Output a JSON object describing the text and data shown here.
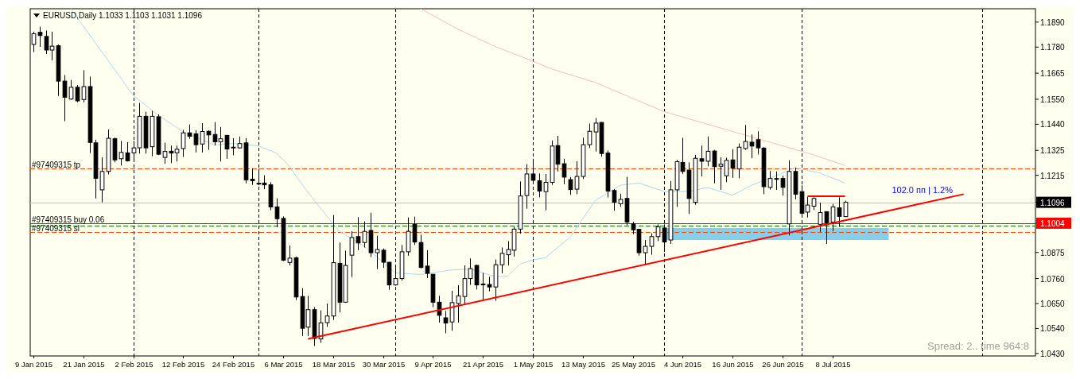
{
  "chart_data": {
    "type": "candlestick",
    "title": "EURUSD,Daily  1.1033 1.1103 1.1031 1.1096",
    "categories": [
      "9 Jan 2015",
      null,
      null,
      null,
      null,
      null,
      null,
      null,
      "21 Jan 2015",
      null,
      null,
      null,
      null,
      null,
      null,
      null,
      "2 Feb 2015",
      null,
      null,
      null,
      null,
      null,
      null,
      null,
      "12 Feb 2015",
      null,
      null,
      null,
      null,
      null,
      null,
      null,
      "24 Feb 2015",
      null,
      null,
      null,
      null,
      null,
      null,
      null,
      "6 Mar 2015",
      null,
      null,
      null,
      null,
      null,
      null,
      null,
      "18 Mar 2015",
      null,
      null,
      null,
      null,
      null,
      null,
      null,
      "30 Mar 2015",
      null,
      null,
      null,
      null,
      null,
      null,
      null,
      "9 Apr 2015",
      null,
      null,
      null,
      null,
      null,
      null,
      null,
      "21 Apr 2015",
      null,
      null,
      null,
      null,
      null,
      null,
      null,
      "1 May 2015",
      null,
      null,
      null,
      null,
      null,
      null,
      null,
      "13 May 2015",
      null,
      null,
      null,
      null,
      null,
      null,
      null,
      "25 May 2015",
      null,
      null,
      null,
      null,
      null,
      null,
      null,
      "4 Jun 2015",
      null,
      null,
      null,
      null,
      null,
      null,
      null,
      "16 Jun 2015",
      null,
      null,
      null,
      null,
      null,
      null,
      null,
      "26 Jun 2015",
      null,
      null,
      null,
      null,
      null,
      null,
      null,
      "8 Jul 2015",
      null,
      null,
      null,
      null,
      null,
      null,
      null,
      null,
      null,
      null,
      null,
      null,
      null,
      null,
      null,
      null,
      null,
      null,
      null,
      null,
      null,
      null,
      null,
      null,
      null,
      null,
      null,
      null,
      null,
      null,
      null,
      null
    ],
    "ohlc": [
      [
        1.1792,
        1.1848,
        1.1758,
        1.1839
      ],
      [
        1.1845,
        1.187,
        1.1781,
        1.1831
      ],
      [
        1.1827,
        1.1853,
        1.1749,
        1.1767
      ],
      [
        1.1767,
        1.1848,
        1.1722,
        1.1784
      ],
      [
        1.1786,
        1.1792,
        1.1565,
        1.163
      ],
      [
        1.163,
        1.1657,
        1.1454,
        1.1559
      ],
      [
        1.1551,
        1.1635,
        1.1548,
        1.1603
      ],
      [
        1.1603,
        1.1613,
        1.1537,
        1.1543
      ],
      [
        1.1549,
        1.1678,
        1.1537,
        1.1606
      ],
      [
        1.1606,
        1.165,
        1.1313,
        1.136
      ],
      [
        1.1358,
        1.1372,
        1.1113,
        1.1202
      ],
      [
        1.1151,
        1.1294,
        1.1096,
        1.1232
      ],
      [
        1.1232,
        1.1417,
        1.1219,
        1.1378
      ],
      [
        1.1376,
        1.1381,
        1.1272,
        1.1283
      ],
      [
        1.1288,
        1.1367,
        1.1258,
        1.1316
      ],
      [
        1.1314,
        1.1361,
        1.1276,
        1.1279
      ],
      [
        1.1314,
        1.1367,
        1.1281,
        1.1336
      ],
      [
        1.1336,
        1.1534,
        1.1311,
        1.1475
      ],
      [
        1.1475,
        1.1495,
        1.1311,
        1.1336
      ],
      [
        1.1341,
        1.1499,
        1.1299,
        1.1475
      ],
      [
        1.1473,
        1.1484,
        1.1304,
        1.1308
      ],
      [
        1.1294,
        1.1359,
        1.1266,
        1.132
      ],
      [
        1.1321,
        1.1346,
        1.1269,
        1.1313
      ],
      [
        1.1314,
        1.1346,
        1.1276,
        1.133
      ],
      [
        1.1333,
        1.1415,
        1.1296,
        1.1402
      ],
      [
        1.1402,
        1.1439,
        1.1376,
        1.1387
      ],
      [
        1.1398,
        1.1414,
        1.1316,
        1.135
      ],
      [
        1.1353,
        1.1445,
        1.1316,
        1.1408
      ],
      [
        1.1409,
        1.1414,
        1.1327,
        1.1393
      ],
      [
        1.1395,
        1.1449,
        1.1346,
        1.1363
      ],
      [
        1.1363,
        1.1428,
        1.1276,
        1.1376
      ],
      [
        1.1391,
        1.1393,
        1.1288,
        1.1331
      ],
      [
        1.1339,
        1.1378,
        1.1303,
        1.1339
      ],
      [
        1.1336,
        1.1386,
        1.1333,
        1.1355
      ],
      [
        1.1358,
        1.1379,
        1.118,
        1.1195
      ],
      [
        1.1198,
        1.1246,
        1.1173,
        1.1191
      ],
      [
        1.118,
        1.1243,
        1.1171,
        1.118
      ],
      [
        1.1181,
        1.1215,
        1.1154,
        1.1173
      ],
      [
        1.1173,
        1.1185,
        1.1061,
        1.1076
      ],
      [
        1.1076,
        1.1113,
        1.0986,
        1.1024
      ],
      [
        1.1025,
        1.1034,
        1.0837,
        1.0841
      ],
      [
        1.0831,
        1.0906,
        1.0818,
        1.085
      ],
      [
        1.0852,
        1.0857,
        1.0665,
        1.0679
      ],
      [
        1.0681,
        1.0718,
        1.0507,
        1.0541
      ],
      [
        1.0546,
        1.0684,
        1.0507,
        1.0623
      ],
      [
        1.0623,
        1.0634,
        1.0463,
        1.0496
      ],
      [
        1.0494,
        1.062,
        1.0477,
        1.0565
      ],
      [
        1.0566,
        1.065,
        1.0547,
        1.0595
      ],
      [
        1.0595,
        1.104,
        1.0578,
        1.083
      ],
      [
        1.0827,
        1.0919,
        1.0611,
        1.0656
      ],
      [
        1.0656,
        1.0883,
        1.0653,
        1.0818
      ],
      [
        1.0863,
        1.0969,
        1.0766,
        1.0941
      ],
      [
        1.0945,
        1.1031,
        1.0885,
        1.0917
      ],
      [
        1.0919,
        1.1012,
        1.0897,
        1.0968
      ],
      [
        1.0972,
        1.105,
        1.0855,
        1.0874
      ],
      [
        1.0874,
        1.0949,
        1.0802,
        1.0888
      ],
      [
        1.0885,
        1.0893,
        1.0807,
        1.0832
      ],
      [
        1.0832,
        1.0832,
        1.071,
        1.0732
      ],
      [
        1.0732,
        1.0807,
        1.0729,
        1.076
      ],
      [
        1.076,
        1.0908,
        1.0751,
        1.0878
      ],
      [
        1.0878,
        1.1029,
        1.0861,
        1.0968
      ],
      [
        1.0999,
        1.1033,
        1.0908,
        1.0921
      ],
      [
        1.0919,
        1.0953,
        1.0804,
        1.0809
      ],
      [
        1.0815,
        1.0885,
        1.0762,
        1.0783
      ],
      [
        1.0779,
        1.0779,
        1.0634,
        1.0656
      ],
      [
        1.0656,
        1.0684,
        1.0566,
        1.0598
      ],
      [
        1.0587,
        1.0617,
        1.0519,
        1.0564
      ],
      [
        1.0569,
        1.0706,
        1.053,
        1.0654
      ],
      [
        1.065,
        1.0731,
        1.0566,
        1.0684
      ],
      [
        1.0681,
        1.0818,
        1.0645,
        1.076
      ],
      [
        1.076,
        1.0849,
        1.0732,
        1.0804
      ],
      [
        1.0818,
        1.0821,
        1.0712,
        1.0732
      ],
      [
        1.0736,
        1.0785,
        1.0667,
        1.0736
      ],
      [
        1.0734,
        1.0768,
        1.0704,
        1.0723
      ],
      [
        1.0723,
        1.0844,
        1.0662,
        1.0821
      ],
      [
        1.0821,
        1.0897,
        1.0783,
        1.0871
      ],
      [
        1.0865,
        1.0925,
        1.0818,
        1.0888
      ],
      [
        1.0885,
        1.0988,
        1.0857,
        1.0978
      ],
      [
        1.0978,
        1.1188,
        1.0958,
        1.1124
      ],
      [
        1.1126,
        1.1264,
        1.1068,
        1.1221
      ],
      [
        1.1221,
        1.1288,
        1.1188,
        1.1193
      ],
      [
        1.1191,
        1.1223,
        1.1118,
        1.1146
      ],
      [
        1.1143,
        1.1221,
        1.1061,
        1.1184
      ],
      [
        1.1184,
        1.1369,
        1.1173,
        1.1344
      ],
      [
        1.1346,
        1.1389,
        1.1232,
        1.1264
      ],
      [
        1.1266,
        1.1288,
        1.1176,
        1.1207
      ],
      [
        1.1196,
        1.1207,
        1.1129,
        1.1152
      ],
      [
        1.1154,
        1.1277,
        1.1132,
        1.121
      ],
      [
        1.121,
        1.1381,
        1.1199,
        1.135
      ],
      [
        1.135,
        1.1443,
        1.1335,
        1.1409
      ],
      [
        1.1406,
        1.1467,
        1.132,
        1.1445
      ],
      [
        1.1448,
        1.145,
        1.1297,
        1.1311
      ],
      [
        1.1313,
        1.1324,
        1.1118,
        1.1146
      ],
      [
        1.1148,
        1.1154,
        1.1059,
        1.1096
      ],
      [
        1.109,
        1.1134,
        1.1076,
        1.1109
      ],
      [
        1.1113,
        1.1208,
        1.0995,
        1.1009
      ],
      [
        1.1001,
        1.1011,
        1.0955,
        1.0975
      ],
      [
        1.0977,
        1.0977,
        1.0861,
        1.0874
      ],
      [
        1.0874,
        1.093,
        1.0818,
        1.0902
      ],
      [
        1.0902,
        1.096,
        1.0865,
        1.0945
      ],
      [
        1.0945,
        1.0999,
        1.0925,
        1.0988
      ],
      [
        1.0983,
        1.0999,
        1.0877,
        1.0921
      ],
      [
        1.093,
        1.119,
        1.0913,
        1.1151
      ],
      [
        1.1151,
        1.1283,
        1.1076,
        1.1275
      ],
      [
        1.1272,
        1.138,
        1.1221,
        1.1232
      ],
      [
        1.1238,
        1.1272,
        1.1045,
        1.1113
      ],
      [
        1.1096,
        1.1305,
        1.1085,
        1.129
      ],
      [
        1.1288,
        1.1346,
        1.121,
        1.1277
      ],
      [
        1.1277,
        1.1386,
        1.1255,
        1.1321
      ],
      [
        1.1322,
        1.1327,
        1.118,
        1.1253
      ],
      [
        1.1255,
        1.1294,
        1.1151,
        1.1264
      ],
      [
        1.1213,
        1.1293,
        1.1185,
        1.1281
      ],
      [
        1.1283,
        1.133,
        1.1204,
        1.1247
      ],
      [
        1.1243,
        1.1355,
        1.1202,
        1.1339
      ],
      [
        1.1333,
        1.1437,
        1.1327,
        1.1364
      ],
      [
        1.1361,
        1.1395,
        1.129,
        1.1344
      ],
      [
        1.1372,
        1.1409,
        1.1307,
        1.1336
      ],
      [
        1.1335,
        1.1339,
        1.1132,
        1.1165
      ],
      [
        1.1162,
        1.1234,
        1.1152,
        1.1201
      ],
      [
        1.1201,
        1.1232,
        1.1151,
        1.1201
      ],
      [
        1.1201,
        1.1213,
        1.1126,
        1.1162
      ],
      [
        1.1001,
        1.1281,
        1.095,
        1.1232
      ],
      [
        1.1232,
        1.1249,
        1.1109,
        1.1132
      ],
      [
        1.1143,
        1.1171,
        1.1037,
        1.1048
      ],
      [
        1.1053,
        1.112,
        1.1029,
        1.1084
      ],
      [
        1.1079,
        1.1118,
        1.1062,
        1.1113
      ],
      [
        1.0999,
        1.1095,
        1.0966,
        1.1051
      ],
      [
        1.1055,
        1.1055,
        1.0913,
        1.1006
      ],
      [
        1.1009,
        1.1089,
        1.0969,
        1.1076
      ],
      [
        1.1072,
        1.1118,
        1.0988,
        1.1034
      ],
      [
        1.1033,
        1.1103,
        1.1031,
        1.1096
      ],
      null,
      null,
      null,
      null,
      null,
      null,
      null,
      null,
      null,
      null,
      null,
      null,
      null,
      null,
      null,
      null,
      null,
      null,
      null,
      null,
      null,
      null,
      null,
      null,
      null,
      null,
      null,
      null,
      null,
      null
    ],
    "series": [
      {
        "type": "line",
        "color": "#add8e6",
        "values": [
          null,
          null,
          null,
          null,
          null,
          null,
          1.1949,
          null,
          null,
          null,
          null,
          null,
          null,
          null,
          null,
          null,
          1.1567,
          null,
          null,
          null,
          1.148,
          null,
          null,
          null,
          1.1406,
          null,
          null,
          null,
          null,
          1.1349,
          null,
          null,
          1.1355,
          null,
          null,
          null,
          1.1345,
          null,
          null,
          1.1312,
          null,
          1.1255,
          1.1214,
          null,
          null,
          1.1104,
          null,
          null,
          null,
          1.0969,
          null,
          null,
          null,
          1.0902,
          null,
          null,
          null,
          null,
          1.0785,
          null,
          null,
          null,
          1.0778,
          null,
          null,
          null,
          null,
          1.0798,
          null,
          null,
          1.0802,
          null,
          null,
          null,
          1.0768,
          null,
          1.0771,
          null,
          1.0825,
          null,
          1.0842,
          null,
          1.0852,
          null,
          null,
          null,
          1.0943,
          null,
          null,
          null,
          1.1104,
          null,
          null,
          null,
          1.1171,
          null,
          null,
          1.1181,
          null,
          null,
          null,
          1.1144,
          null,
          null,
          null,
          1.1144,
          null,
          null,
          1.1161,
          null,
          null,
          null,
          1.1127,
          null,
          null,
          1.1171,
          null,
          null,
          null,
          1.1214,
          null,
          null,
          1.1248,
          null,
          null,
          null,
          1.1225,
          null,
          null,
          null,
          1.1181,
          null,
          null,
          null,
          null,
          null,
          null,
          null,
          null,
          null,
          null,
          null,
          null,
          null,
          null,
          null,
          null,
          null,
          null,
          null,
          null,
          null,
          null,
          null,
          null,
          null,
          null,
          null,
          null,
          null,
          null
        ]
      },
      {
        "type": "line",
        "color": "#ffb6c1",
        "values": [
          null,
          null,
          null,
          null,
          null,
          null,
          null,
          null,
          null,
          null,
          null,
          null,
          null,
          null,
          null,
          null,
          null,
          null,
          null,
          null,
          null,
          null,
          null,
          null,
          null,
          null,
          null,
          null,
          null,
          null,
          null,
          null,
          null,
          null,
          null,
          null,
          null,
          null,
          null,
          null,
          null,
          null,
          null,
          null,
          null,
          null,
          null,
          null,
          null,
          null,
          null,
          null,
          null,
          null,
          null,
          null,
          null,
          null,
          null,
          null,
          null,
          null,
          1.1949,
          null,
          null,
          null,
          null,
          null,
          1.1859,
          null,
          null,
          null,
          null,
          null,
          1.1782,
          null,
          null,
          null,
          null,
          null,
          1.1718,
          null,
          null,
          1.1684,
          null,
          null,
          null,
          null,
          null,
          null,
          1.1624,
          null,
          null,
          null,
          null,
          null,
          null,
          null,
          null,
          null,
          null,
          1.1496,
          null,
          null,
          null,
          null,
          null,
          null,
          null,
          null,
          null,
          1.1416,
          null,
          null,
          null,
          null,
          null,
          null,
          null,
          null,
          null,
          null,
          null,
          null,
          null,
          1.1305,
          null,
          null,
          null,
          null,
          1.1258,
          null,
          null,
          null,
          null,
          null,
          null,
          null,
          null,
          null,
          null,
          null,
          null,
          null,
          null,
          null,
          null,
          null,
          null,
          null,
          null,
          null,
          null,
          null,
          null,
          null,
          null,
          null,
          null,
          null,
          null
        ]
      },
      {
        "type": "line",
        "color": "#ff0000",
        "values": [
          null,
          null,
          null,
          null,
          null,
          null,
          null,
          null,
          null,
          null,
          null,
          null,
          null,
          null,
          null,
          null,
          null,
          null,
          null,
          null,
          null,
          null,
          null,
          null,
          null,
          null,
          null,
          null,
          null,
          null,
          null,
          null,
          null,
          null,
          null,
          null,
          null,
          null,
          null,
          null,
          null,
          null,
          null,
          null,
          1.0494,
          null,
          null,
          null,
          null,
          null,
          null,
          null,
          null,
          null,
          null,
          null,
          null,
          null,
          null,
          null,
          null,
          null,
          null,
          null,
          null,
          null,
          null,
          null,
          null,
          null,
          null,
          null,
          null,
          null,
          null,
          null,
          null,
          null,
          null,
          null,
          null,
          null,
          null,
          null,
          null,
          null,
          null,
          null,
          null,
          null,
          null,
          null,
          null,
          null,
          null,
          null,
          null,
          null,
          null,
          null,
          null,
          null,
          null,
          null,
          null,
          null,
          null,
          null,
          null,
          null,
          null,
          null,
          null,
          null,
          null,
          null,
          null,
          null,
          null,
          null,
          null,
          null,
          null,
          null,
          null,
          null,
          null,
          null,
          null,
          null,
          null,
          null,
          null,
          null,
          null,
          null,
          null,
          null,
          null,
          null,
          null,
          null,
          null,
          null,
          null,
          null,
          null,
          null,
          null,
          1.1132,
          null,
          null,
          null,
          null,
          null,
          null,
          null,
          null,
          null,
          null,
          null
        ]
      },
      {
        "type": "line",
        "color": "#ff0000",
        "values": [
          null,
          null,
          null,
          null,
          null,
          null,
          null,
          null,
          null,
          null,
          null,
          null,
          null,
          null,
          null,
          null,
          null,
          null,
          null,
          null,
          null,
          null,
          null,
          null,
          null,
          null,
          null,
          null,
          null,
          null,
          null,
          null,
          null,
          null,
          null,
          null,
          null,
          null,
          null,
          null,
          null,
          null,
          null,
          null,
          null,
          null,
          null,
          null,
          null,
          null,
          null,
          null,
          null,
          null,
          null,
          null,
          null,
          null,
          null,
          null,
          null,
          null,
          null,
          null,
          null,
          null,
          null,
          null,
          null,
          null,
          null,
          null,
          null,
          null,
          null,
          null,
          null,
          null,
          null,
          null,
          null,
          null,
          null,
          null,
          null,
          null,
          null,
          null,
          null,
          null,
          null,
          null,
          null,
          null,
          null,
          null,
          null,
          null,
          null,
          null,
          null,
          null,
          null,
          null,
          null,
          null,
          null,
          null,
          null,
          null,
          null,
          null,
          null,
          null,
          null,
          null,
          null,
          null,
          null,
          null,
          null,
          null,
          null,
          null,
          1.1123,
          null,
          null,
          null,
          null,
          null,
          1.1123,
          null,
          null,
          null,
          null,
          null,
          null,
          null,
          null,
          null,
          null,
          null,
          null,
          null,
          null,
          null,
          null,
          null,
          null,
          null,
          null,
          null,
          null,
          null,
          null,
          null,
          null,
          null,
          null,
          null,
          null
        ]
      }
    ],
    "ylim": [
      1.0419,
      1.1949
    ],
    "yticks": [
      {
        "value": 1.189,
        "label": "1.1890"
      },
      {
        "value": 1.178,
        "label": "1.1780"
      },
      1.1665,
      {
        "value": 1.155,
        "label": "1.1550"
      },
      {
        "value": 1.144,
        "label": "1.1440"
      },
      1.1325,
      1.1215,
      {
        "value": 1.1096,
        "label": "1.1096"
      },
      {
        "value": 1.1004,
        "label": "1.1004"
      },
      1.0875,
      {
        "value": 1.076,
        "label": "1.0760"
      },
      {
        "value": 1.065,
        "label": "1.0650"
      },
      {
        "value": 1.054,
        "label": "1.0540"
      },
      {
        "value": 1.043,
        "label": "1.0430"
      }
    ],
    "ref_lines": [
      {
        "axis": "y",
        "value": 1.1245,
        "label": "#97409315 tp",
        "color": "#ff4500",
        "line_style": "dashed"
      },
      {
        "axis": "y",
        "value": 1.1096,
        "color": "#c0c0c0",
        "line_style": "solid"
      },
      {
        "axis": "y",
        "value": 1.1004,
        "label": "#97409315 buy 0.06",
        "color": "#ff0000",
        "line_style": "solid"
      },
      {
        "axis": "y",
        "value": 1.0993,
        "color": "#008000",
        "line_style": "dashed"
      },
      {
        "axis": "y",
        "value": 1.0965,
        "label": "#97409315 sl",
        "color": "#ff4500",
        "line_style": "dashed"
      }
    ],
    "bands": [
      {
        "axis": "y",
        "from": 1.093,
        "to": 1.0983,
        "color": "#87ceeb"
      }
    ],
    "annotations": [
      "102.0 пп | 1.2%",
      "Spread: 2.. time 964:8"
    ],
    "grid": false
  }
}
